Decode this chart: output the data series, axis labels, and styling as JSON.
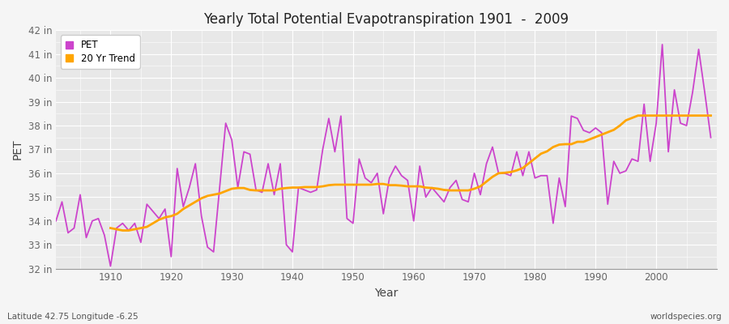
{
  "title": "Yearly Total Potential Evapotranspiration 1901  -  2009",
  "xlabel": "Year",
  "ylabel": "PET",
  "bottom_left": "Latitude 42.75 Longitude -6.25",
  "bottom_right": "worldspecies.org",
  "pet_color": "#CC44CC",
  "trend_color": "#FFA500",
  "fig_bg_color": "#f5f5f5",
  "plot_bg_color": "#e8e8e8",
  "ylim": [
    32,
    42
  ],
  "ytick_labels": [
    "32 in",
    "33 in",
    "34 in",
    "35 in",
    "36 in",
    "37 in",
    "38 in",
    "39 in",
    "40 in",
    "41 in",
    "42 in"
  ],
  "ytick_values": [
    32,
    33,
    34,
    35,
    36,
    37,
    38,
    39,
    40,
    41,
    42
  ],
  "xticks": [
    1910,
    1920,
    1930,
    1940,
    1950,
    1960,
    1970,
    1980,
    1990,
    2000
  ],
  "xlim": [
    1901,
    2010
  ],
  "years": [
    1901,
    1902,
    1903,
    1904,
    1905,
    1906,
    1907,
    1908,
    1909,
    1910,
    1911,
    1912,
    1913,
    1914,
    1915,
    1916,
    1917,
    1918,
    1919,
    1920,
    1921,
    1922,
    1923,
    1924,
    1925,
    1926,
    1927,
    1928,
    1929,
    1930,
    1931,
    1932,
    1933,
    1934,
    1935,
    1936,
    1937,
    1938,
    1939,
    1940,
    1941,
    1942,
    1943,
    1944,
    1945,
    1946,
    1947,
    1948,
    1949,
    1950,
    1951,
    1952,
    1953,
    1954,
    1955,
    1956,
    1957,
    1958,
    1959,
    1960,
    1961,
    1962,
    1963,
    1964,
    1965,
    1966,
    1967,
    1968,
    1969,
    1970,
    1971,
    1972,
    1973,
    1974,
    1975,
    1976,
    1977,
    1978,
    1979,
    1980,
    1981,
    1982,
    1983,
    1984,
    1985,
    1986,
    1987,
    1988,
    1989,
    1990,
    1991,
    1992,
    1993,
    1994,
    1995,
    1996,
    1997,
    1998,
    1999,
    2000,
    2001,
    2002,
    2003,
    2004,
    2005,
    2006,
    2007,
    2008,
    2009
  ],
  "pet_values": [
    34.0,
    34.8,
    33.5,
    33.7,
    35.1,
    33.3,
    34.0,
    34.1,
    33.4,
    32.1,
    33.7,
    33.9,
    33.6,
    33.9,
    33.1,
    34.7,
    34.4,
    34.1,
    34.5,
    32.5,
    36.2,
    34.6,
    35.4,
    36.4,
    34.2,
    32.9,
    32.7,
    35.4,
    38.1,
    37.4,
    35.4,
    36.9,
    36.8,
    35.3,
    35.2,
    36.4,
    35.1,
    36.4,
    33.0,
    32.7,
    35.4,
    35.3,
    35.2,
    35.3,
    37.0,
    38.3,
    36.9,
    38.4,
    34.1,
    33.9,
    36.6,
    35.8,
    35.6,
    36.0,
    34.3,
    35.8,
    36.3,
    35.9,
    35.7,
    34.0,
    36.3,
    35.0,
    35.4,
    35.1,
    34.8,
    35.4,
    35.7,
    34.9,
    34.8,
    36.0,
    35.1,
    36.4,
    37.1,
    36.0,
    36.0,
    35.9,
    36.9,
    35.9,
    36.9,
    35.8,
    35.9,
    35.9,
    33.9,
    35.8,
    34.6,
    38.4,
    38.3,
    37.8,
    37.7,
    37.9,
    37.7,
    34.7,
    36.5,
    36.0,
    36.1,
    36.6,
    36.5,
    38.9,
    36.5,
    38.1,
    41.4,
    36.9,
    39.5,
    38.1,
    38.0,
    39.4,
    41.2,
    39.4,
    37.5
  ],
  "trend_years": [
    1910,
    1911,
    1912,
    1913,
    1914,
    1915,
    1916,
    1917,
    1918,
    1919,
    1920,
    1921,
    1922,
    1923,
    1924,
    1925,
    1926,
    1927,
    1928,
    1929,
    1930,
    1931,
    1932,
    1933,
    1934,
    1935,
    1936,
    1937,
    1938,
    1939,
    1940,
    1941,
    1942,
    1943,
    1944,
    1945,
    1946,
    1947,
    1948,
    1949,
    1950,
    1951,
    1952,
    1953,
    1954,
    1955,
    1956,
    1957,
    1958,
    1959,
    1960,
    1961,
    1962,
    1963,
    1964,
    1965,
    1966,
    1967,
    1968,
    1969,
    1970,
    1971,
    1972,
    1973,
    1974,
    1975,
    1976,
    1977,
    1978,
    1979,
    1980,
    1981,
    1982,
    1983,
    1984,
    1985,
    1986,
    1987,
    1988,
    1989,
    1990,
    1991,
    1992,
    1993,
    1994,
    1995,
    1996,
    1997,
    1998,
    1999,
    2000,
    2001,
    2002,
    2003,
    2004,
    2005,
    2006,
    2007,
    2008,
    2009
  ],
  "trend_values": [
    33.7,
    33.65,
    33.6,
    33.6,
    33.65,
    33.7,
    33.75,
    33.9,
    34.05,
    34.15,
    34.2,
    34.3,
    34.5,
    34.65,
    34.8,
    34.95,
    35.05,
    35.1,
    35.15,
    35.25,
    35.35,
    35.38,
    35.38,
    35.3,
    35.28,
    35.28,
    35.28,
    35.28,
    35.35,
    35.38,
    35.4,
    35.4,
    35.42,
    35.42,
    35.42,
    35.45,
    35.5,
    35.52,
    35.52,
    35.52,
    35.52,
    35.52,
    35.52,
    35.52,
    35.55,
    35.55,
    35.5,
    35.5,
    35.48,
    35.45,
    35.45,
    35.45,
    35.4,
    35.38,
    35.35,
    35.3,
    35.28,
    35.28,
    35.28,
    35.28,
    35.35,
    35.45,
    35.65,
    35.85,
    36.0,
    36.02,
    36.05,
    36.12,
    36.22,
    36.42,
    36.62,
    36.82,
    36.92,
    37.1,
    37.2,
    37.22,
    37.22,
    37.32,
    37.32,
    37.42,
    37.52,
    37.62,
    37.72,
    37.82,
    38.0,
    38.22,
    38.32,
    38.42,
    38.42,
    38.42,
    38.42,
    38.42,
    38.42,
    38.42,
    38.42,
    38.42,
    38.42,
    38.42,
    38.42,
    38.42
  ]
}
